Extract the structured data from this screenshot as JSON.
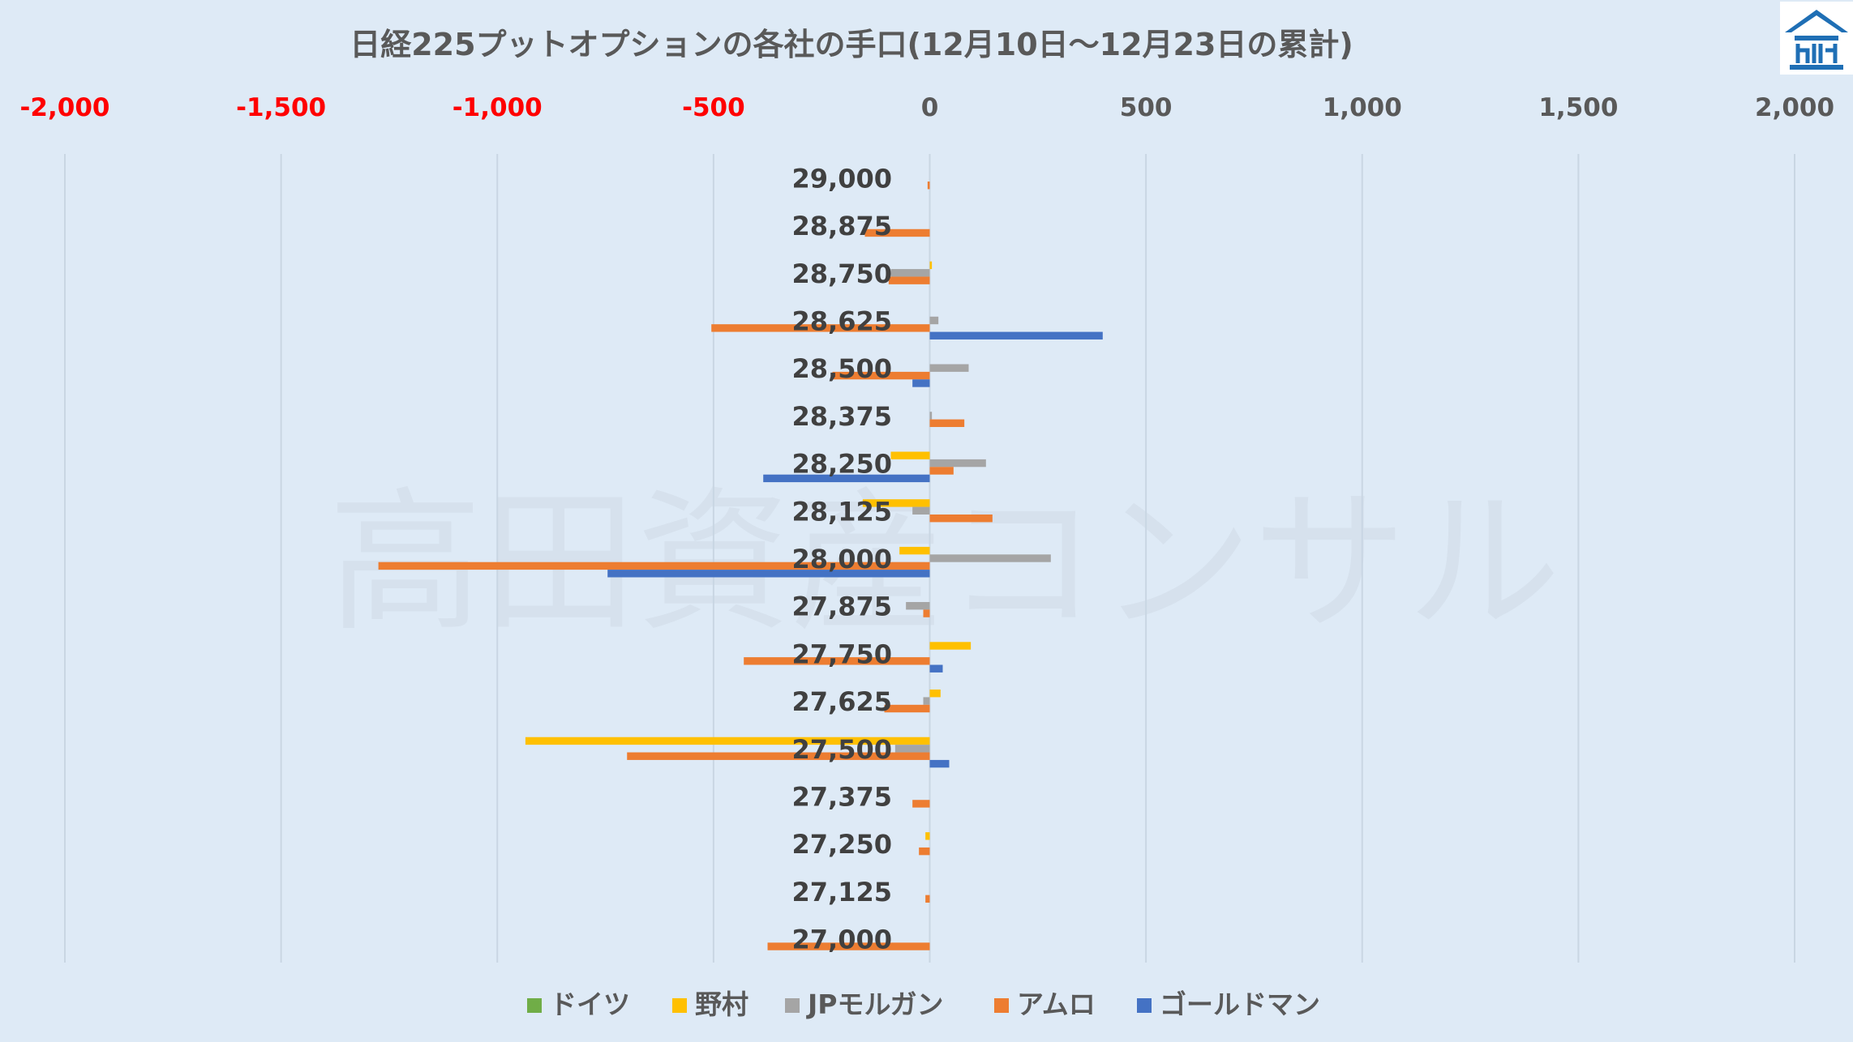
{
  "chart_data": {
    "type": "bar",
    "orientation": "horizontal",
    "title": "日経225プットオプションの各社の手口(12月10日～12月23日の累計)",
    "xlim": [
      -2000,
      2000
    ],
    "x_ticks": [
      "-2,000",
      "-1,500",
      "-1,000",
      "-500",
      "0",
      "500",
      "1,000",
      "1,500",
      "2,000"
    ],
    "x_tick_values": [
      -2000,
      -1500,
      -1000,
      -500,
      0,
      500,
      1000,
      1500,
      2000
    ],
    "negative_tick_color": "#ff0000",
    "grid": true,
    "legend_position": "bottom",
    "categories": [
      "29,000",
      "28,875",
      "28,750",
      "28,625",
      "28,500",
      "28,375",
      "28,250",
      "28,125",
      "28,000",
      "27,875",
      "27,750",
      "27,625",
      "27,500",
      "27,375",
      "27,250",
      "27,125",
      "27,000"
    ],
    "series": [
      {
        "name": "ドイツ",
        "color": "#70ad47",
        "values": [
          0,
          0,
          0,
          0,
          0,
          0,
          0,
          0,
          0,
          0,
          0,
          0,
          0,
          0,
          0,
          0,
          0
        ]
      },
      {
        "name": "野村",
        "color": "#ffc000",
        "values": [
          0,
          0,
          5,
          0,
          0,
          0,
          -90,
          -155,
          -70,
          0,
          95,
          25,
          -935,
          0,
          -10,
          0,
          0
        ]
      },
      {
        "name": "JPモルガン",
        "color": "#a5a5a5",
        "values": [
          0,
          0,
          -90,
          20,
          90,
          5,
          130,
          -40,
          280,
          -55,
          0,
          -15,
          -80,
          0,
          0,
          0,
          0
        ]
      },
      {
        "name": "アムロ",
        "color": "#ed7d31",
        "values": [
          -5,
          -150,
          -95,
          -505,
          -225,
          80,
          55,
          145,
          -1275,
          -15,
          -430,
          -105,
          -700,
          -40,
          -25,
          -10,
          -375
        ]
      },
      {
        "name": "ゴールドマン",
        "color": "#4472c4",
        "values": [
          0,
          0,
          0,
          400,
          -40,
          0,
          -385,
          0,
          -745,
          0,
          30,
          0,
          45,
          0,
          0,
          0,
          0
        ]
      }
    ]
  },
  "watermark": "高田資産コンサル",
  "logo": {
    "name": "building-logo"
  }
}
